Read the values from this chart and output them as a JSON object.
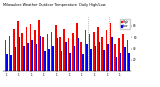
{
  "title": "Milwaukee Weather Outdoor Temperature  Daily High/Low",
  "high_color": "#ff0000",
  "low_color": "#0000ff",
  "background_color": "#ffffff",
  "dpi": 100,
  "figsize": [
    1.6,
    0.87
  ],
  "highs": [
    55,
    62,
    75,
    88,
    68,
    78,
    84,
    72,
    90,
    60,
    65,
    70,
    82,
    60,
    75,
    58,
    68,
    85,
    52,
    72,
    65,
    70,
    78,
    60,
    72,
    85,
    48,
    58,
    65,
    55
  ],
  "lows": [
    30,
    28,
    42,
    60,
    44,
    50,
    55,
    48,
    62,
    35,
    40,
    45,
    58,
    36,
    52,
    32,
    44,
    58,
    30,
    48,
    40,
    45,
    52,
    38,
    48,
    60,
    25,
    32,
    42,
    32
  ],
  "ylim": [
    0,
    95
  ],
  "vline_positions": [
    19.5,
    24.5
  ],
  "n_bars": 30
}
